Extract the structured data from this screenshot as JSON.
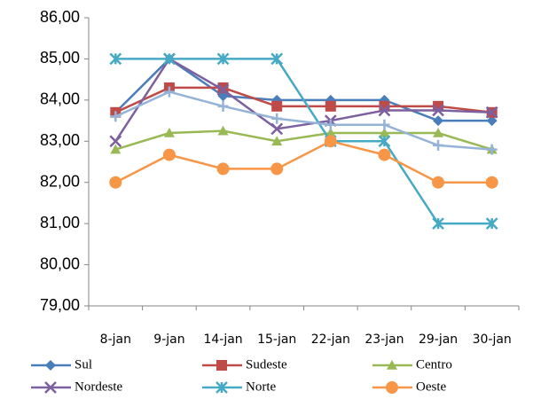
{
  "chart_data": {
    "type": "line",
    "categories": [
      "8-jan",
      "9-jan",
      "14-jan",
      "15-jan",
      "22-jan",
      "23-jan",
      "29-jan",
      "30-jan"
    ],
    "series": [
      {
        "name": "Sul",
        "color": "#4a7ebb",
        "marker": "diamond",
        "values": [
          83.7,
          85.0,
          84.1,
          84.0,
          84.0,
          84.0,
          83.5,
          83.5
        ]
      },
      {
        "name": "Sudeste",
        "color": "#be4b48",
        "marker": "square",
        "values": [
          83.7,
          84.3,
          84.3,
          83.85,
          83.85,
          83.85,
          83.85,
          83.7
        ]
      },
      {
        "name": "Centro",
        "color": "#98b954",
        "marker": "triangle",
        "values": [
          82.8,
          83.2,
          83.25,
          83.0,
          83.2,
          83.2,
          83.2,
          82.8
        ]
      },
      {
        "name": "Nordeste",
        "color": "#7d60a0",
        "marker": "x",
        "values": [
          83.0,
          85.0,
          84.25,
          83.3,
          83.5,
          83.75,
          83.75,
          83.7
        ]
      },
      {
        "name": "Norte",
        "color": "#46aac5",
        "marker": "star",
        "values": [
          85.0,
          85.0,
          85.0,
          85.0,
          83.0,
          83.0,
          81.0,
          81.0
        ]
      },
      {
        "name": "Oeste",
        "color": "#f79646",
        "marker": "circle",
        "values": [
          82.0,
          82.67,
          82.33,
          82.33,
          83.0,
          82.67,
          82.0,
          82.0
        ]
      },
      {
        "color": "#95b3d7",
        "marker": "plus",
        "values": [
          83.6,
          84.2,
          83.85,
          83.55,
          83.4,
          83.4,
          82.9,
          82.8
        ]
      }
    ],
    "ylim": [
      79,
      86
    ],
    "yticks": [
      {
        "value": 79,
        "label": "79,00"
      },
      {
        "value": 80,
        "label": "80,00"
      },
      {
        "value": 81,
        "label": "81,00"
      },
      {
        "value": 82,
        "label": "82,00"
      },
      {
        "value": 83,
        "label": "83,00"
      },
      {
        "value": 84,
        "label": "84,00"
      },
      {
        "value": 85,
        "label": "85,00"
      },
      {
        "value": 86,
        "label": "86,00"
      }
    ],
    "grid": false
  }
}
